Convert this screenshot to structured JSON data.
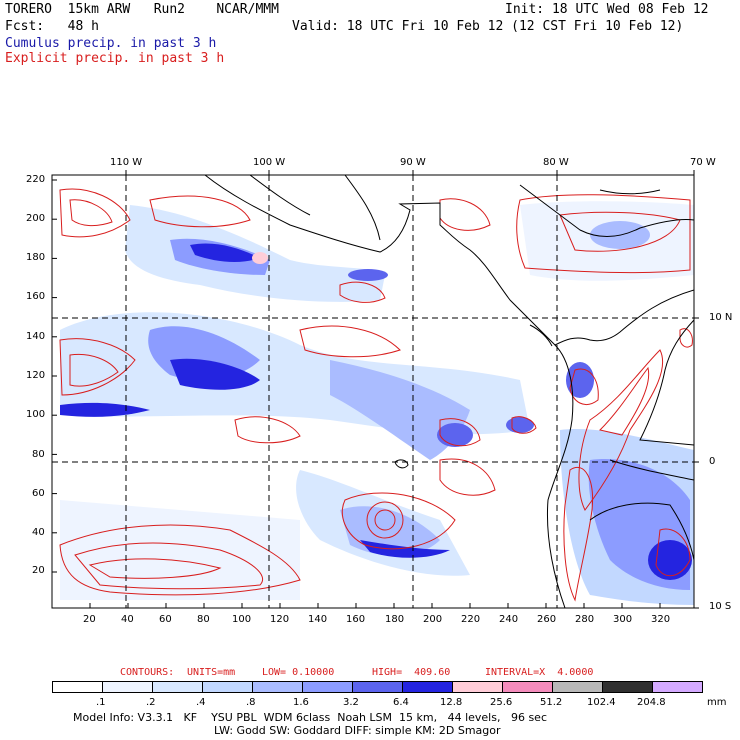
{
  "header": {
    "model_line": "TORERO  15km ARW   Run2    NCAR/MMM",
    "init": "Init: 18 UTC Wed 08 Feb 12",
    "fcst": "Fcst:   48 h",
    "valid": "Valid: 18 UTC Fri 10 Feb 12 (12 CST Fri 10 Feb 12)",
    "legend_cumulus": "Cumulus precip. in past 3 h",
    "legend_explicit": "Explicit precip. in past 3 h"
  },
  "colors": {
    "cumulus": "#1a1aa8",
    "explicit": "#d81e1e",
    "grid": "#000000"
  },
  "map": {
    "lon_labels": [
      "110 W",
      "100 W",
      "90 W",
      "80 W",
      "70 W"
    ],
    "lat_labels": [
      "10 N",
      "0",
      "10 S"
    ],
    "x_ticks": [
      "20",
      "40",
      "60",
      "80",
      "100",
      "120",
      "140",
      "160",
      "180",
      "200",
      "220",
      "240",
      "260",
      "280",
      "300",
      "320"
    ],
    "y_ticks": [
      "220",
      "200",
      "180",
      "160",
      "140",
      "120",
      "100",
      "80",
      "60",
      "40",
      "20"
    ]
  },
  "contours": {
    "label": "CONTOURS:",
    "units": "UNITS=mm",
    "low": "LOW= 0.10000",
    "high": "HIGH=  409.60",
    "interval": "INTERVAL=X  4.0000"
  },
  "colorbar": {
    "labels": [
      ".1",
      ".2",
      ".4",
      ".8",
      "1.6",
      "3.2",
      "6.4",
      "12.8",
      "25.6",
      "51.2",
      "102.4",
      "204.8"
    ],
    "unit": "mm",
    "colors": [
      "#ffffff",
      "#eef4ff",
      "#d8e8ff",
      "#c2d8ff",
      "#aabcff",
      "#8c9cff",
      "#5c64ee",
      "#2424e0",
      "#ffcdd8",
      "#f48cbc",
      "#b8b8b8",
      "#303030",
      "#d4aaff"
    ]
  },
  "footer": {
    "line1": "Model Info: V3.3.1   KF    YSU PBL  WDM 6class  Noah LSM  15 km,   44 levels,   96 sec",
    "line2": "LW: Godd SW: Goddard DIFF: simple KM: 2D Smagor"
  }
}
